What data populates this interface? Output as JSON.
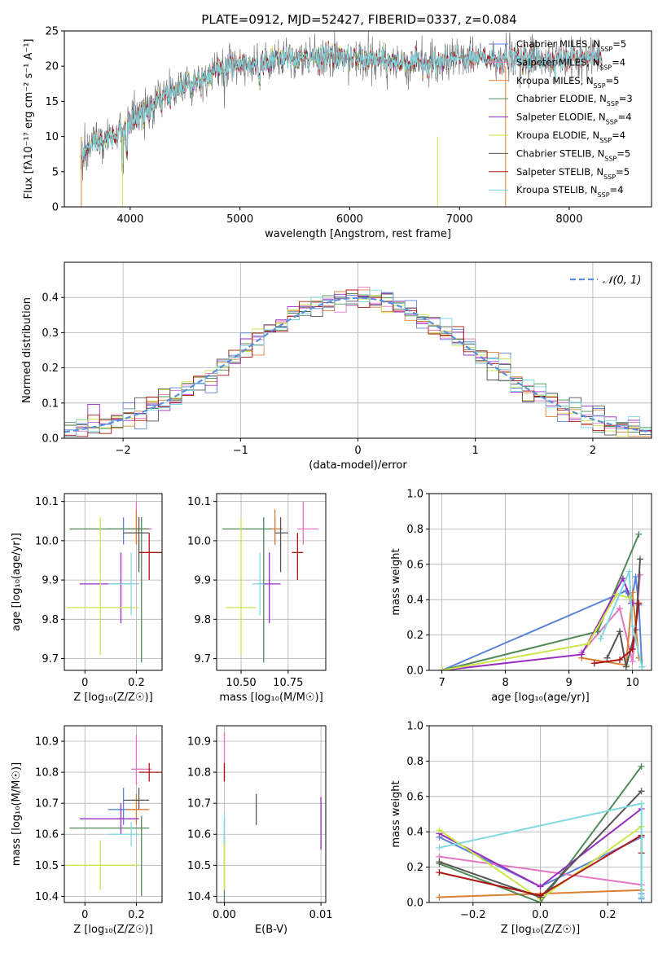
{
  "figure": {
    "title": "PLATE=0912, MJD=52427, FIBERID=0337, z=0.084"
  },
  "colors": {
    "Chabrier MILES": "#5b84d8",
    "Salpeter MILES": "#e377c2",
    "Kroupa MILES": "#d98032",
    "Chabrier ELODIE": "#4f8a58",
    "Salpeter ELODIE": "#9a2bc0",
    "Kroupa ELODIE": "#cde64a",
    "Chabrier STELIB": "#555555",
    "Salpeter STELIB": "#b01515",
    "Kroupa STELIB": "#7fd9e0",
    "data": "#777777",
    "normal": "#5b8fdd",
    "grid": "#b0b0b0"
  },
  "chart_data": [
    {
      "id": "spectrum",
      "type": "line",
      "title": "PLATE=0912, MJD=52427, FIBERID=0337, z=0.084",
      "xlabel": "wavelength [Angstrom, rest frame]",
      "ylabel": "Flux [fλ10⁻¹⁷ erg cm⁻² s⁻¹ A⁻¹]",
      "xlim": [
        3400,
        8750
      ],
      "ylim": [
        0,
        25
      ],
      "xticks": [
        4000,
        5000,
        6000,
        7000,
        8000
      ],
      "yticks": [
        0,
        5,
        10,
        15,
        20,
        25
      ],
      "grid": false,
      "legend_position": "right",
      "legend": [
        {
          "name": "Chabrier MILES",
          "label": "Chabrier MILES, N",
          "sub": "SSP",
          "tail": "=5"
        },
        {
          "name": "Salpeter MILES",
          "label": "Salpeter MILES, N",
          "sub": "SSP",
          "tail": "=4"
        },
        {
          "name": "Kroupa MILES",
          "label": "Kroupa MILES, N",
          "sub": "SSP",
          "tail": "=5"
        },
        {
          "name": "Chabrier ELODIE",
          "label": "Chabrier ELODIE, N",
          "sub": "SSP",
          "tail": "=3"
        },
        {
          "name": "Salpeter ELODIE",
          "label": "Salpeter ELODIE, N",
          "sub": "SSP",
          "tail": "=4"
        },
        {
          "name": "Kroupa ELODIE",
          "label": "Kroupa ELODIE, N",
          "sub": "SSP",
          "tail": "=4"
        },
        {
          "name": "Chabrier STELIB",
          "label": "Chabrier STELIB, N",
          "sub": "SSP",
          "tail": "=5"
        },
        {
          "name": "Salpeter STELIB",
          "label": "Salpeter STELIB, N",
          "sub": "SSP",
          "tail": "=5"
        },
        {
          "name": "Kroupa STELIB",
          "label": "Kroupa STELIB, N",
          "sub": "SSP",
          "tail": "=4"
        }
      ],
      "continuum": {
        "x": [
          3550,
          3650,
          3800,
          3900,
          3950,
          4000,
          4100,
          4200,
          4300,
          4400,
          4600,
          4800,
          5000,
          5200,
          5400,
          5600,
          5800,
          6000,
          6200,
          6400,
          6600,
          6800,
          7000,
          7200,
          7400,
          7600,
          7800,
          8000,
          8200,
          8300
        ],
        "y": [
          7.5,
          8.5,
          9.5,
          10.5,
          11.0,
          12.0,
          13.0,
          14.0,
          15.5,
          16.5,
          18.0,
          19.5,
          20.5,
          20.5,
          21.0,
          21.0,
          21.5,
          21.0,
          21.0,
          20.5,
          20.5,
          20.5,
          21.0,
          21.0,
          21.0,
          21.0,
          21.0,
          21.0,
          21.5,
          21.0
        ]
      }
    },
    {
      "id": "residuals",
      "type": "bar",
      "xlabel": "(data-model)/error",
      "ylabel": "Normed distribution",
      "xlim": [
        -2.5,
        2.5
      ],
      "ylim": [
        0,
        0.5
      ],
      "xticks": [
        -2,
        -1,
        0,
        1,
        2
      ],
      "xtick_labels": [
        "−2",
        "−1",
        "0",
        "1",
        "2"
      ],
      "yticks": [
        0.0,
        0.1,
        0.2,
        0.3,
        0.4
      ],
      "grid": true,
      "legend": [
        {
          "name": "𝒩(0, 1)",
          "style": "dashed"
        }
      ],
      "bin_width": 0.1,
      "histogram": "normed histograms of the residuals for each of the 9 model fits"
    },
    {
      "id": "age-vs-Z",
      "type": "scatter",
      "xlabel": "Z [log₁₀(Z/Z☉)]",
      "ylabel": "age  [log₁₀(age/yr)]",
      "xlim": [
        -0.08,
        0.3
      ],
      "ylim": [
        9.67,
        10.12
      ],
      "xticks": [
        0.0,
        0.2
      ],
      "yticks": [
        9.7,
        9.8,
        9.9,
        10.0,
        10.1
      ],
      "grid": true,
      "points": [
        {
          "model": "Chabrier MILES",
          "x": 0.15,
          "xerr": [
            0.06,
            0.06
          ],
          "y": 10.03,
          "yerr": [
            0.04,
            0.03
          ]
        },
        {
          "model": "Salpeter MILES",
          "x": 0.2,
          "xerr": [
            0.02,
            0.06
          ],
          "y": 10.03,
          "yerr": [
            0.04,
            0.07
          ]
        },
        {
          "model": "Kroupa MILES",
          "x": 0.2,
          "xerr": [
            0.04,
            0.05
          ],
          "y": 10.03,
          "yerr": [
            0.04,
            0.05
          ]
        },
        {
          "model": "Chabrier ELODIE",
          "x": 0.22,
          "xerr": [
            0.28,
            0.03
          ],
          "y": 10.03,
          "yerr": [
            0.34,
            0.03
          ]
        },
        {
          "model": "Salpeter ELODIE",
          "x": 0.14,
          "xerr": [
            0.16,
            0.07
          ],
          "y": 9.89,
          "yerr": [
            0.1,
            0.08
          ]
        },
        {
          "model": "Kroupa ELODIE",
          "x": 0.06,
          "xerr": [
            0.13,
            0.15
          ],
          "y": 9.83,
          "yerr": [
            0.12,
            0.23
          ]
        },
        {
          "model": "Chabrier STELIB",
          "x": 0.21,
          "xerr": [
            0.06,
            0.04
          ],
          "y": 10.02,
          "yerr": [
            0.1,
            0.04
          ]
        },
        {
          "model": "Salpeter STELIB",
          "x": 0.25,
          "xerr": [
            0.04,
            0.05
          ],
          "y": 9.97,
          "yerr": [
            0.07,
            0.05
          ]
        },
        {
          "model": "Kroupa STELIB",
          "x": 0.18,
          "xerr": [
            0.09,
            0.03
          ],
          "y": 9.89,
          "yerr": [
            0.08,
            0.08
          ]
        }
      ]
    },
    {
      "id": "age-vs-mass",
      "type": "scatter",
      "xlabel": "mass [log₁₀(M/M☉)]",
      "ylabel": "",
      "xlim": [
        10.37,
        10.95
      ],
      "ylim": [
        9.67,
        10.12
      ],
      "xticks": [
        10.5,
        10.75
      ],
      "xtick_labels": [
        "10.50",
        "10.75"
      ],
      "yticks": [
        9.7,
        9.8,
        9.9,
        10.0,
        10.1
      ],
      "grid": true,
      "points": [
        {
          "model": "Chabrier MILES",
          "x": 10.68,
          "xerr": [
            0.03,
            0.03
          ],
          "y": 10.03,
          "yerr": [
            0.04,
            0.03
          ]
        },
        {
          "model": "Salpeter MILES",
          "x": 10.83,
          "xerr": [
            0.03,
            0.08
          ],
          "y": 10.03,
          "yerr": [
            0.04,
            0.07
          ]
        },
        {
          "model": "Kroupa MILES",
          "x": 10.68,
          "xerr": [
            0.03,
            0.04
          ],
          "y": 10.03,
          "yerr": [
            0.04,
            0.05
          ]
        },
        {
          "model": "Chabrier ELODIE",
          "x": 10.62,
          "xerr": [
            0.22,
            0.04
          ],
          "y": 10.03,
          "yerr": [
            0.34,
            0.03
          ]
        },
        {
          "model": "Salpeter ELODIE",
          "x": 10.65,
          "xerr": [
            0.06,
            0.06
          ],
          "y": 9.89,
          "yerr": [
            0.1,
            0.08
          ]
        },
        {
          "model": "Kroupa ELODIE",
          "x": 10.5,
          "xerr": [
            0.08,
            0.08
          ],
          "y": 9.83,
          "yerr": [
            0.12,
            0.23
          ]
        },
        {
          "model": "Chabrier STELIB",
          "x": 10.71,
          "xerr": [
            0.03,
            0.04
          ],
          "y": 10.02,
          "yerr": [
            0.1,
            0.04
          ]
        },
        {
          "model": "Salpeter STELIB",
          "x": 10.8,
          "xerr": [
            0.03,
            0.03
          ],
          "y": 9.97,
          "yerr": [
            0.07,
            0.05
          ]
        },
        {
          "model": "Kroupa STELIB",
          "x": 10.6,
          "xerr": [
            0.04,
            0.02
          ],
          "y": 9.89,
          "yerr": [
            0.08,
            0.08
          ]
        }
      ]
    },
    {
      "id": "weight-vs-age",
      "type": "line",
      "xlabel": "age  [log₁₀(age/yr)]",
      "ylabel": "mass weight",
      "xlim": [
        6.8,
        10.3
      ],
      "ylim": [
        0,
        1
      ],
      "xticks": [
        7,
        8,
        9,
        10
      ],
      "yticks": [
        0.0,
        0.2,
        0.4,
        0.6,
        0.8,
        1.0
      ],
      "grid": true,
      "series": [
        {
          "model": "Chabrier MILES",
          "x": [
            7.0,
            9.9,
            9.98,
            10.05,
            10.1,
            10.15
          ],
          "y": [
            0.0,
            0.45,
            0.38,
            0.53,
            0.37,
            0.02
          ]
        },
        {
          "model": "Salpeter MILES",
          "x": [
            9.2,
            9.8,
            10.0,
            10.12
          ],
          "y": [
            0.1,
            0.35,
            0.05,
            0.54
          ]
        },
        {
          "model": "Kroupa MILES",
          "x": [
            9.2,
            9.9,
            10.0,
            10.1
          ],
          "y": [
            0.07,
            0.03,
            0.44,
            0.07
          ]
        },
        {
          "model": "Chabrier ELODIE",
          "x": [
            7.0,
            9.45,
            10.1
          ],
          "y": [
            0.0,
            0.22,
            0.77
          ]
        },
        {
          "model": "Salpeter ELODIE",
          "x": [
            7.0,
            9.2,
            9.85,
            10.0
          ],
          "y": [
            0.0,
            0.09,
            0.52,
            0.38
          ]
        },
        {
          "model": "Kroupa ELODIE",
          "x": [
            7.0,
            9.3,
            9.75,
            9.95
          ],
          "y": [
            0.0,
            0.15,
            0.43,
            0.41
          ]
        },
        {
          "model": "Chabrier STELIB",
          "x": [
            9.6,
            9.8,
            9.9,
            10.05,
            10.12
          ],
          "y": [
            0.07,
            0.22,
            0.02,
            0.23,
            0.63
          ]
        },
        {
          "model": "Salpeter STELIB",
          "x": [
            9.4,
            9.8,
            10.0,
            10.1
          ],
          "y": [
            0.04,
            0.06,
            0.12,
            0.38
          ]
        },
        {
          "model": "Kroupa STELIB",
          "x": [
            9.5,
            9.95,
            10.0,
            10.15
          ],
          "y": [
            0.18,
            0.56,
            0.25,
            0.02
          ]
        }
      ]
    },
    {
      "id": "mass-vs-Z",
      "type": "scatter",
      "xlabel": "Z [log₁₀(Z/Z☉)]",
      "ylabel": "mass [log₁₀(M/M☉)]",
      "xlim": [
        -0.08,
        0.3
      ],
      "ylim": [
        10.38,
        10.95
      ],
      "xticks": [
        0.0,
        0.2
      ],
      "yticks": [
        10.4,
        10.5,
        10.6,
        10.7,
        10.8,
        10.9
      ],
      "grid": true,
      "points": [
        {
          "model": "Chabrier MILES",
          "x": 0.15,
          "xerr": [
            0.06,
            0.06
          ],
          "y": 10.68,
          "yerr": [
            0.05,
            0.07
          ]
        },
        {
          "model": "Salpeter MILES",
          "x": 0.2,
          "xerr": [
            0.02,
            0.06
          ],
          "y": 10.81,
          "yerr": [
            0.05,
            0.11
          ]
        },
        {
          "model": "Kroupa MILES",
          "x": 0.2,
          "xerr": [
            0.04,
            0.05
          ],
          "y": 10.68,
          "yerr": [
            0.05,
            0.05
          ]
        },
        {
          "model": "Chabrier ELODIE",
          "x": 0.22,
          "xerr": [
            0.28,
            0.03
          ],
          "y": 10.62,
          "yerr": [
            0.22,
            0.04
          ]
        },
        {
          "model": "Salpeter ELODIE",
          "x": 0.14,
          "xerr": [
            0.16,
            0.07
          ],
          "y": 10.65,
          "yerr": [
            0.05,
            0.05
          ]
        },
        {
          "model": "Kroupa ELODIE",
          "x": 0.06,
          "xerr": [
            0.13,
            0.15
          ],
          "y": 10.5,
          "yerr": [
            0.08,
            0.08
          ]
        },
        {
          "model": "Chabrier STELIB",
          "x": 0.21,
          "xerr": [
            0.06,
            0.04
          ],
          "y": 10.71,
          "yerr": [
            0.03,
            0.04
          ]
        },
        {
          "model": "Salpeter STELIB",
          "x": 0.25,
          "xerr": [
            0.04,
            0.05
          ],
          "y": 10.8,
          "yerr": [
            0.03,
            0.03
          ]
        },
        {
          "model": "Kroupa STELIB",
          "x": 0.18,
          "xerr": [
            0.09,
            0.03
          ],
          "y": 10.6,
          "yerr": [
            0.04,
            0.04
          ]
        }
      ]
    },
    {
      "id": "mass-vs-EBV",
      "type": "scatter",
      "xlabel": "E(B-V)",
      "ylabel": "",
      "xlim": [
        -0.0008,
        0.0105
      ],
      "ylim": [
        10.38,
        10.95
      ],
      "xticks": [
        0.0,
        0.01
      ],
      "xtick_labels": [
        "0.00",
        "0.01"
      ],
      "yticks": [
        10.4,
        10.5,
        10.6,
        10.7,
        10.8,
        10.9
      ],
      "grid": true,
      "points": [
        {
          "model": "Salpeter MILES",
          "x": 0.0,
          "y": 10.82,
          "yerr": [
            0.05,
            0.11
          ]
        },
        {
          "model": "Chabrier ELODIE",
          "x": 0.0,
          "y": 10.6,
          "yerr": [
            0.22,
            0.05
          ]
        },
        {
          "model": "Kroupa ELODIE",
          "x": 0.0,
          "y": 10.5,
          "yerr": [
            0.08,
            0.08
          ]
        },
        {
          "model": "Salpeter STELIB",
          "x": 0.0,
          "y": 10.8,
          "yerr": [
            0.03,
            0.03
          ]
        },
        {
          "model": "Kroupa STELIB",
          "x": 0.0,
          "y": 10.62,
          "yerr": [
            0.05,
            0.05
          ]
        },
        {
          "model": "Chabrier STELIB",
          "x": 0.0033,
          "y": 10.68,
          "yerr": [
            0.05,
            0.05
          ]
        },
        {
          "model": "Salpeter ELODIE",
          "x": 0.01,
          "y": 10.63,
          "yerr": [
            0.08,
            0.09
          ]
        }
      ]
    },
    {
      "id": "weight-vs-Z",
      "type": "line",
      "xlabel": "Z [log₁₀(Z/Z☉)]",
      "ylabel": "mass weight",
      "xlim": [
        -0.33,
        0.33
      ],
      "ylim": [
        0,
        1
      ],
      "xticks": [
        -0.2,
        0.0,
        0.2
      ],
      "xtick_labels": [
        "−0.2",
        "0.0",
        "0.2"
      ],
      "yticks": [
        0.0,
        0.2,
        0.4,
        0.6,
        0.8,
        1.0
      ],
      "grid": true,
      "series": [
        {
          "model": "Chabrier MILES",
          "x": [
            -0.3,
            0.0,
            0.3,
            0.3,
            0.3
          ],
          "y": [
            0.37,
            0.09,
            0.37,
            0.05,
            0.02
          ]
        },
        {
          "model": "Salpeter MILES",
          "x": [
            -0.3,
            0.3
          ],
          "y": [
            0.26,
            0.1
          ]
        },
        {
          "model": "Kroupa MILES",
          "x": [
            -0.3,
            0.0,
            0.3
          ],
          "y": [
            0.03,
            0.05,
            0.07
          ]
        },
        {
          "model": "Chabrier ELODIE",
          "x": [
            -0.3,
            0.0,
            0.3
          ],
          "y": [
            0.22,
            0.0,
            0.77
          ]
        },
        {
          "model": "Salpeter ELODIE",
          "x": [
            -0.3,
            0.0,
            0.3
          ],
          "y": [
            0.39,
            0.09,
            0.53
          ]
        },
        {
          "model": "Kroupa ELODIE",
          "x": [
            -0.3,
            0.0,
            0.3
          ],
          "y": [
            0.41,
            0.02,
            0.43
          ]
        },
        {
          "model": "Chabrier STELIB",
          "x": [
            -0.3,
            0.0,
            0.3
          ],
          "y": [
            0.23,
            0.03,
            0.63
          ]
        },
        {
          "model": "Salpeter STELIB",
          "x": [
            -0.3,
            0.0,
            0.3,
            0.3
          ],
          "y": [
            0.17,
            0.04,
            0.38,
            0.28
          ]
        },
        {
          "model": "Kroupa STELIB",
          "x": [
            -0.3,
            0.3,
            0.3
          ],
          "y": [
            0.31,
            0.56,
            0.03
          ]
        }
      ]
    }
  ]
}
